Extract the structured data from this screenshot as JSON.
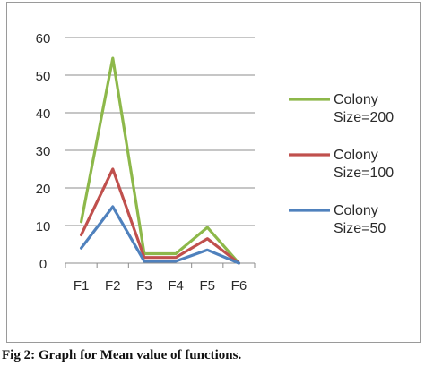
{
  "caption": "Fig 2: Graph for Mean value of functions.",
  "chart_data": {
    "type": "line",
    "categories": [
      "F1",
      "F2",
      "F3",
      "F4",
      "F5",
      "F6"
    ],
    "ylim": [
      0,
      60
    ],
    "yticks": [
      0,
      10,
      20,
      30,
      40,
      50,
      60
    ],
    "grid": true,
    "legend_position": "right",
    "series": [
      {
        "name_lines": [
          "Colony",
          "Size=200"
        ],
        "color": "#8db84a",
        "values": [
          11,
          54.5,
          2.5,
          2.5,
          9.5,
          0
        ]
      },
      {
        "name_lines": [
          "Colony",
          "Size=100"
        ],
        "color": "#c0504d",
        "values": [
          7.5,
          25,
          1.5,
          1.5,
          6.5,
          0
        ]
      },
      {
        "name_lines": [
          "Colony",
          "Size=50"
        ],
        "color": "#4f81bd",
        "values": [
          4,
          15,
          0.5,
          0.5,
          3.5,
          0
        ]
      }
    ]
  }
}
